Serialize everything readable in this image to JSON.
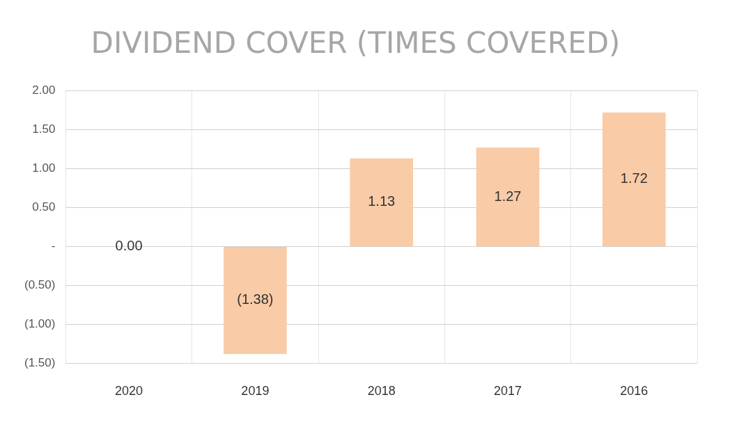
{
  "chart_data": {
    "type": "bar",
    "title": "DIVIDEND COVER (TIMES COVERED)",
    "categories": [
      "2020",
      "2019",
      "2018",
      "2017",
      "2016"
    ],
    "values": [
      0.0,
      -1.38,
      1.13,
      1.27,
      1.72
    ],
    "value_labels": [
      "0.00",
      "(1.38)",
      "1.13",
      "1.27",
      "1.72"
    ],
    "color": "#f9cba6",
    "ylim": [
      -1.5,
      2
    ],
    "yticks": [
      {
        "value": -1.5,
        "label": "(1.50)"
      },
      {
        "value": -1,
        "label": "(1.00)"
      },
      {
        "value": -0.5,
        "label": "(0.50)"
      },
      {
        "value": 0,
        "label": "-"
      },
      {
        "value": 0.5,
        "label": "0.50"
      },
      {
        "value": 1,
        "label": "1.00"
      },
      {
        "value": 1.5,
        "label": "1.50"
      },
      {
        "value": 2,
        "label": "2.00"
      }
    ],
    "grid": true
  }
}
